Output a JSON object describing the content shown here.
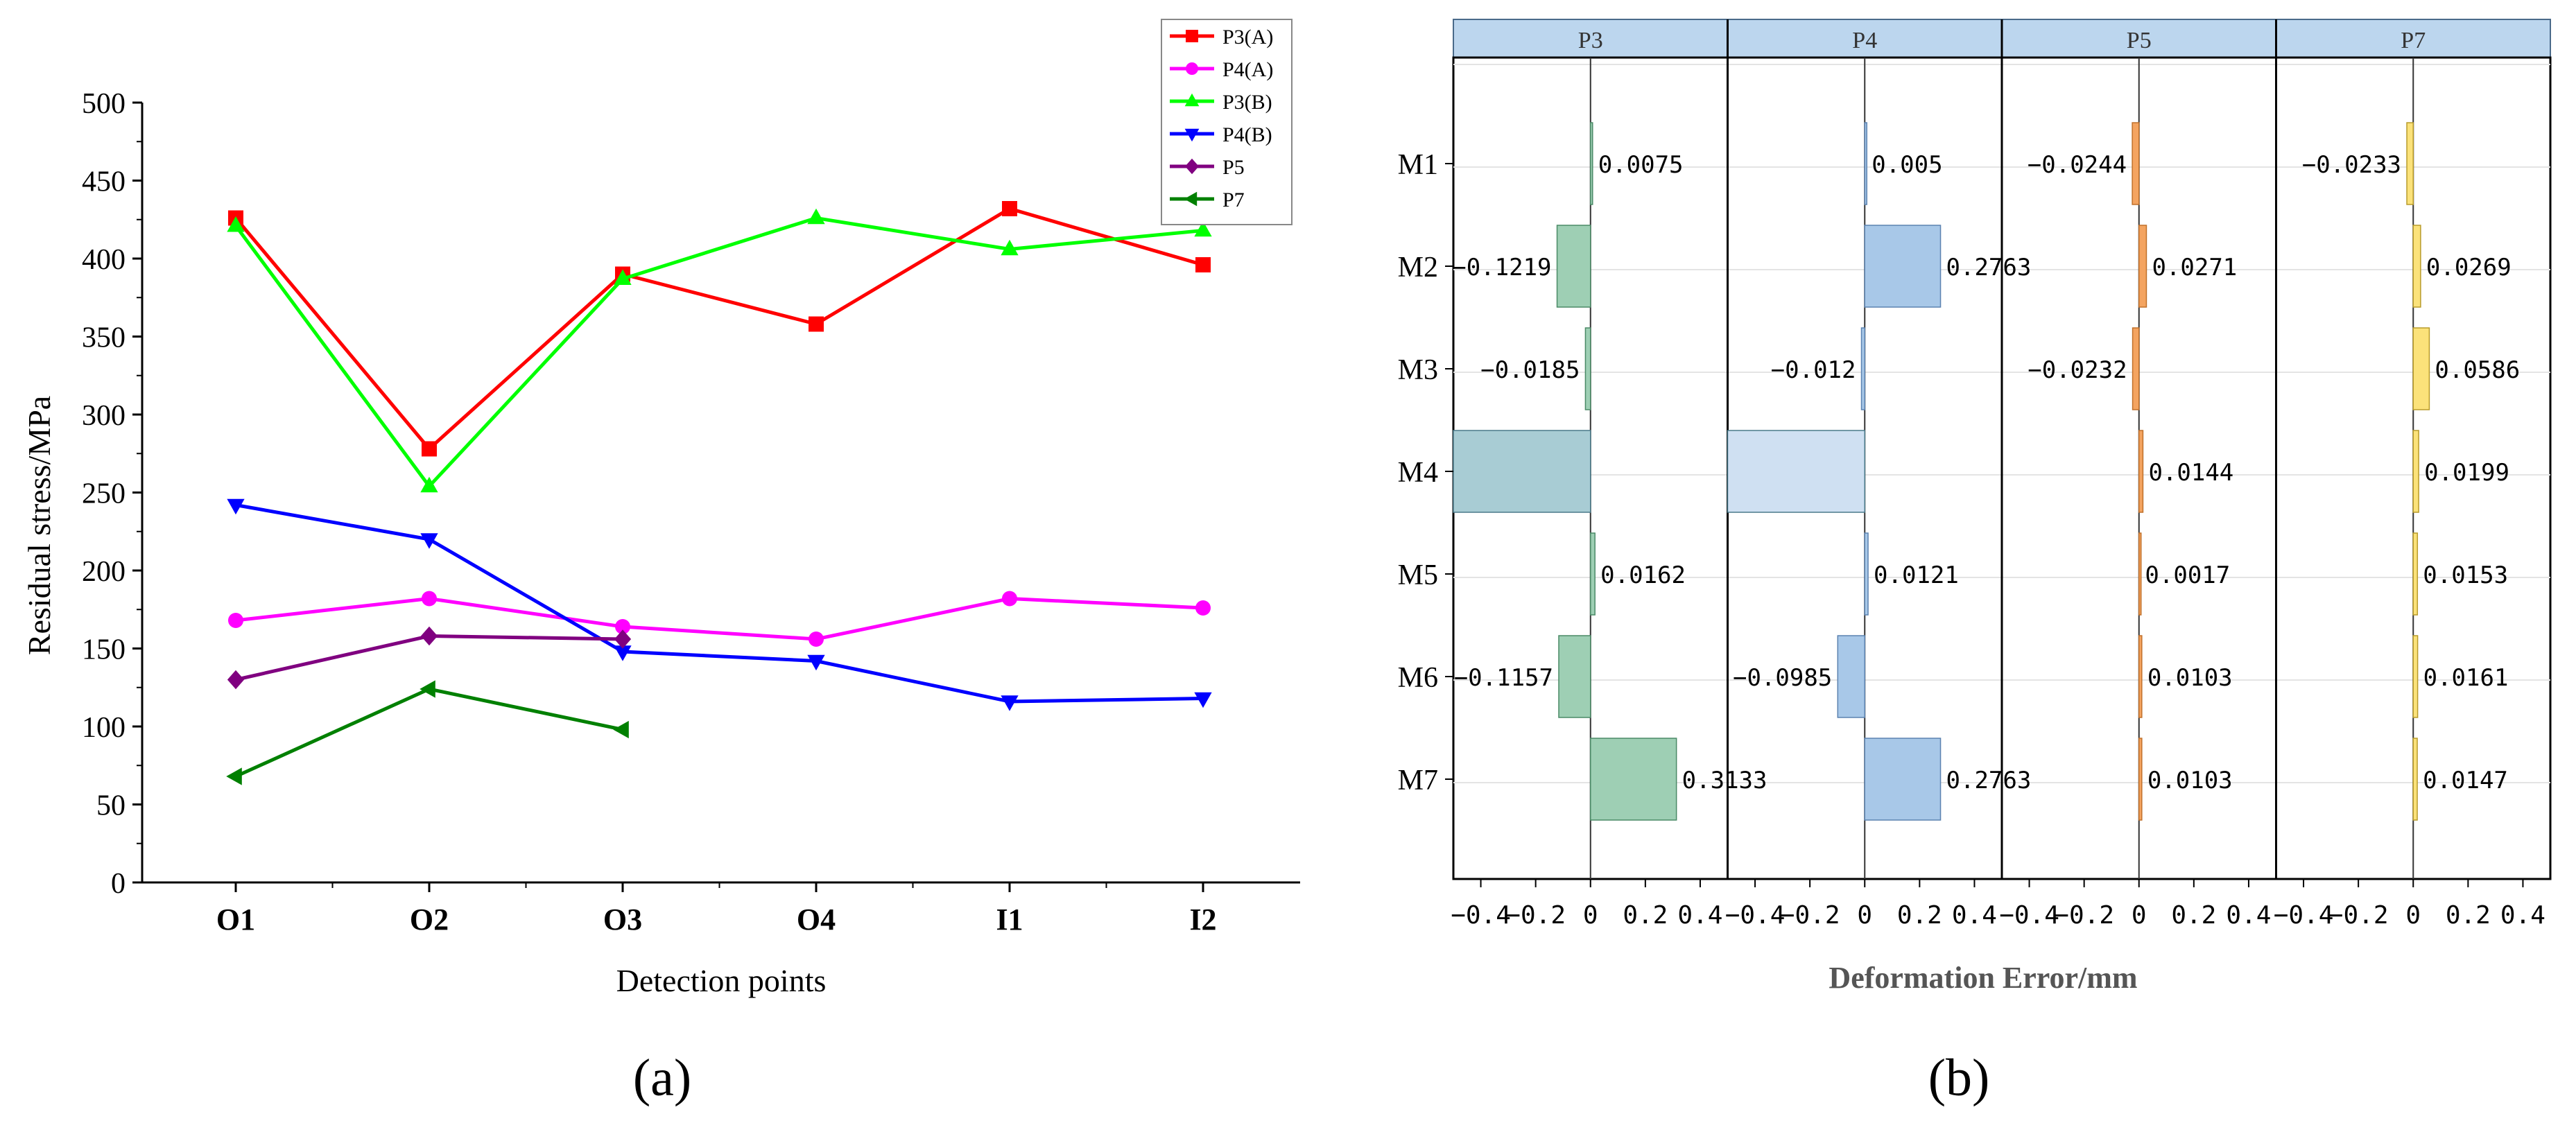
{
  "chart_data": [
    {
      "type": "line",
      "title": "",
      "xlabel": "Detection points",
      "ylabel": "Residual stress/MPa",
      "categories": [
        "O1",
        "O2",
        "O3",
        "O4",
        "I1",
        "I2"
      ],
      "ylim": [
        0,
        500
      ],
      "yticks": [
        "0",
        "50",
        "100",
        "150",
        "200",
        "250",
        "300",
        "350",
        "400",
        "450",
        "500"
      ],
      "series": [
        {
          "name": "P3(A)",
          "color": "#ff0000",
          "marker": "square",
          "values": [
            426,
            278,
            390,
            358,
            432,
            396
          ]
        },
        {
          "name": "P4(A)",
          "color": "#ff00ff",
          "marker": "circle",
          "values": [
            168,
            182,
            164,
            156,
            182,
            176
          ]
        },
        {
          "name": "P3(B)",
          "color": "#00ff00",
          "marker": "triangle-up",
          "values": [
            421,
            254,
            387,
            426,
            406,
            418
          ]
        },
        {
          "name": "P4(B)",
          "color": "#0000ff",
          "marker": "triangle-down",
          "values": [
            242,
            220,
            148,
            142,
            116,
            118
          ]
        },
        {
          "name": "P5",
          "color": "#800080",
          "marker": "diamond",
          "values": [
            130,
            158,
            156,
            null,
            null,
            null
          ]
        },
        {
          "name": "P7",
          "color": "#008000",
          "marker": "triangle-left",
          "values": [
            68,
            124,
            98,
            null,
            null,
            null
          ]
        }
      ],
      "legend": "top-right",
      "sublabel": "(a)"
    },
    {
      "type": "bar",
      "orientation": "horizontal",
      "xlabel": "Deformation Error/mm",
      "categories": [
        "M1",
        "M2",
        "M3",
        "M4",
        "M5",
        "M6",
        "M7"
      ],
      "xlim": [
        -0.5,
        0.5
      ],
      "xticks": [
        "−0.4",
        "−0.2",
        "0",
        "0.2",
        "0.4"
      ],
      "panels": [
        {
          "name": "P3",
          "color": "#9ecfb4",
          "stroke": "#4a8a66",
          "values": [
            0.0075,
            -0.1219,
            -0.0185,
            -0.5,
            0.0162,
            -0.1157,
            0.3133
          ],
          "labels": [
            "0.0075",
            "−0.1219",
            "−0.0185",
            "",
            "0.0162",
            "−0.1157",
            "0.3133"
          ]
        },
        {
          "name": "P4",
          "color": "#a8c8e8",
          "stroke": "#5b82b0",
          "values": [
            0.005,
            0.2763,
            -0.012,
            -0.5,
            0.0121,
            -0.0985,
            0.2763
          ],
          "labels": [
            "0.005",
            "0.2763",
            "−0.012",
            "",
            "0.0121",
            "−0.0985",
            "0.2763"
          ]
        },
        {
          "name": "P5",
          "color": "#f4a460",
          "stroke": "#c0702a",
          "values": [
            -0.0244,
            0.0271,
            -0.0232,
            0.0144,
            0.0017,
            0.0103,
            0.0103
          ],
          "labels": [
            "−0.0244",
            "0.0271",
            "−0.0232",
            "0.0144",
            "0.0017",
            "0.0103",
            "0.0103"
          ]
        },
        {
          "name": "P7",
          "color": "#fbe27a",
          "stroke": "#b89b2a",
          "values": [
            -0.0233,
            0.0269,
            0.0586,
            0.0199,
            0.0153,
            0.0161,
            0.0147
          ],
          "labels": [
            "−0.0233",
            "0.0269",
            "0.0586",
            "0.0199",
            "0.0153",
            "0.0161",
            "0.0147"
          ]
        }
      ],
      "m4_band": {
        "color": "#a8ccd4",
        "color2": "#cfe0f2",
        "stroke": "#4a7a8a"
      },
      "sublabel": "(b)"
    }
  ]
}
